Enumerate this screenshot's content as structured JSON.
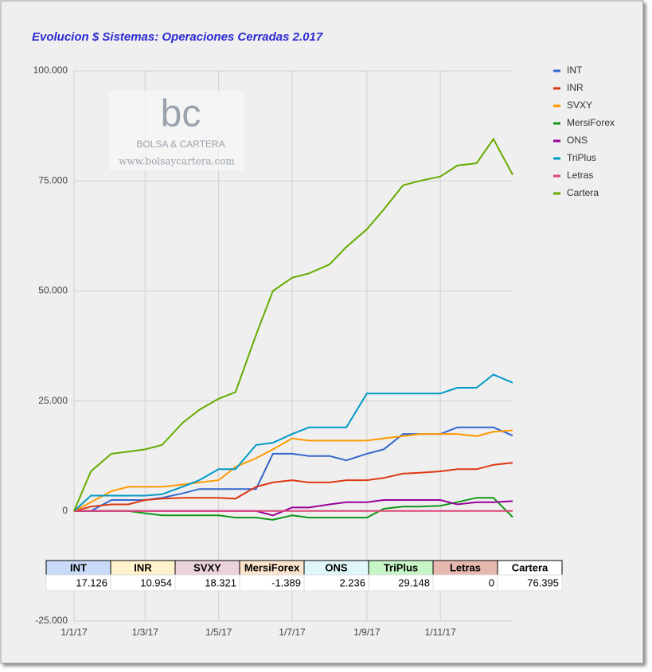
{
  "chart_data": {
    "type": "line",
    "title": "Evolucion $ Sistemas: Operaciones Cerradas 2.017",
    "watermark": {
      "logo": "bc",
      "name": "BOLSA & CARTERA",
      "url": "www.bolsaycartera.com"
    },
    "x": [
      "1/1/17",
      "15/1/17",
      "1/2/17",
      "15/2/17",
      "1/3/17",
      "15/3/17",
      "1/4/17",
      "15/4/17",
      "1/5/17",
      "15/5/17",
      "1/6/17",
      "15/6/17",
      "1/7/17",
      "15/7/17",
      "1/8/17",
      "15/8/17",
      "1/9/17",
      "15/9/17",
      "1/10/17",
      "15/10/17",
      "1/11/17",
      "15/11/17",
      "1/12/17",
      "15/12/17",
      "31/12/17"
    ],
    "xlim": [
      "1/1/17",
      "31/12/17"
    ],
    "xticks": [
      "1/1/17",
      "1/3/17",
      "1/5/17",
      "1/7/17",
      "1/9/17",
      "1/11/17"
    ],
    "ylim": [
      -25000,
      100000
    ],
    "yticks": [
      {
        "value": -25000,
        "label": "-25.000"
      },
      0,
      {
        "value": 25000,
        "label": "25.000"
      },
      {
        "value": 50000,
        "label": "50.000"
      },
      {
        "value": 75000,
        "label": "75.000"
      },
      {
        "value": 100000,
        "label": "100.000"
      }
    ],
    "grid": true,
    "legend": "right",
    "series": [
      {
        "name": "INT",
        "color": "#3366cc",
        "values": [
          0,
          0,
          2500,
          2500,
          2500,
          3000,
          4000,
          5000,
          5000,
          5000,
          5000,
          13000,
          13000,
          12500,
          12500,
          11500,
          13000,
          14000,
          17500,
          17500,
          17500,
          19000,
          19000,
          19000,
          17126
        ]
      },
      {
        "name": "INR",
        "color": "#dc3912",
        "values": [
          0,
          1000,
          1500,
          1500,
          2500,
          2800,
          3000,
          3000,
          3000,
          2800,
          5500,
          6500,
          7000,
          6500,
          6500,
          7000,
          7000,
          7500,
          8500,
          8700,
          9000,
          9500,
          9500,
          10500,
          10954
        ]
      },
      {
        "name": "SVXY",
        "color": "#ff9900",
        "values": [
          0,
          2000,
          4500,
          5500,
          5500,
          5500,
          6000,
          6500,
          7000,
          10000,
          12000,
          14000,
          16500,
          16000,
          16000,
          16000,
          16000,
          16500,
          17000,
          17500,
          17500,
          17500,
          17000,
          18000,
          18321
        ]
      },
      {
        "name": "MersiForex",
        "color": "#109618",
        "values": [
          0,
          0,
          0,
          0,
          -500,
          -1000,
          -1000,
          -1000,
          -1000,
          -1500,
          -1500,
          -2000,
          -1000,
          -1500,
          -1500,
          -1500,
          -1500,
          500,
          1000,
          1000,
          1200,
          2000,
          3000,
          3000,
          -1389
        ]
      },
      {
        "name": "ONS",
        "color": "#990099",
        "values": [
          0,
          0,
          0,
          0,
          0,
          0,
          0,
          0,
          0,
          0,
          0,
          -1000,
          800,
          800,
          1500,
          2000,
          2000,
          2500,
          2500,
          2500,
          2500,
          1500,
          2000,
          2000,
          2236
        ]
      },
      {
        "name": "TriPlus",
        "color": "#0099c6",
        "values": [
          0,
          3500,
          3500,
          3500,
          3500,
          3800,
          5500,
          7000,
          9500,
          9500,
          15000,
          15500,
          17500,
          19000,
          19000,
          19000,
          26700,
          26700,
          26700,
          26700,
          26700,
          28000,
          28000,
          31000,
          29148
        ]
      },
      {
        "name": "Letras",
        "color": "#dd4477",
        "values": [
          0,
          0,
          0,
          0,
          0,
          0,
          0,
          0,
          0,
          0,
          0,
          0,
          0,
          0,
          0,
          0,
          0,
          0,
          0,
          0,
          0,
          0,
          0,
          0,
          0
        ]
      },
      {
        "name": "Cartera",
        "color": "#66aa00",
        "values": [
          0,
          9000,
          13000,
          13500,
          14000,
          15000,
          20000,
          23000,
          25500,
          27000,
          40000,
          50000,
          53000,
          54000,
          56000,
          60000,
          64000,
          68500,
          74000,
          75000,
          76000,
          78500,
          79000,
          84500,
          76395
        ]
      }
    ],
    "table": {
      "headers": [
        "INT",
        "INR",
        "SVXY",
        "MersiForex",
        "ONS",
        "TriPlus",
        "Letras",
        "Cartera"
      ],
      "header_colors": [
        "#c9daf8",
        "#fff2cc",
        "#ead1dc",
        "#fce5cd",
        "#e0f7fa",
        "#c6f5c6",
        "#e6b8af",
        "#ffffff"
      ],
      "cells": [
        "17.126",
        "10.954",
        "18.321",
        "-1.389",
        "2.236",
        "29.148",
        "0",
        "76.395"
      ]
    }
  }
}
